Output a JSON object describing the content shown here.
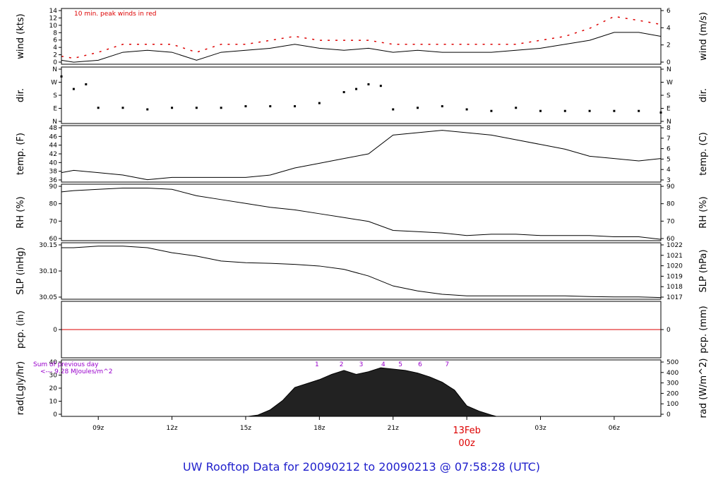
{
  "title": "UW Rooftop Data for 20090212  to  20090213 @ 07:58:28  (UTC)",
  "x_ticks": [
    "09z",
    "12z",
    "15z",
    "18z",
    "21z",
    "00z",
    "03z",
    "06z"
  ],
  "date_label": "13Feb",
  "date_label_hour": "00z",
  "colors": {
    "accent": "#dd0000",
    "title": "#1f1fcc",
    "annotation": "#9900cc",
    "line": "#000000"
  },
  "chart_data": [
    {
      "type": "line",
      "left_label": "wind (kts)",
      "right_label": "wind (m/s)",
      "ylim": [
        0,
        14
      ],
      "left_ticks": [
        "0",
        "2",
        "4",
        "6",
        "8",
        "10",
        "12",
        "14"
      ],
      "right_ticks": [
        "0",
        "2",
        "4",
        "6"
      ],
      "annotation": "10 min. peak winds in red",
      "series": [
        {
          "x": [
            7.5,
            8,
            9,
            10,
            11,
            12,
            13,
            14,
            15,
            16,
            17,
            18,
            19,
            20,
            21,
            22,
            23,
            24,
            25,
            26,
            27,
            28,
            29,
            30,
            31,
            31.9
          ],
          "values": [
            1,
            0.5,
            1,
            3,
            3.5,
            3,
            1,
            3,
            3.5,
            4,
            5,
            4,
            3.5,
            4,
            3,
            3.5,
            3,
            3,
            3,
            3.5,
            4,
            5,
            6,
            8,
            8,
            7
          ]
        },
        {
          "x": [
            7.5,
            8,
            9,
            10,
            11,
            12,
            13,
            14,
            15,
            16,
            17,
            18,
            19,
            20,
            21,
            22,
            23,
            24,
            25,
            26,
            27,
            28,
            29,
            30,
            31,
            31.9
          ],
          "values": [
            2,
            1.5,
            3,
            5,
            5,
            5,
            3,
            5,
            5,
            6,
            7,
            6,
            6,
            6,
            5,
            5,
            5,
            5,
            5,
            5,
            6,
            7,
            9,
            12,
            11,
            10
          ]
        }
      ]
    },
    {
      "type": "scatter",
      "left_label": "dir.",
      "right_label": "dir.",
      "ylim": [
        0,
        360
      ],
      "left_ticks": [
        "N",
        "E",
        "S",
        "W",
        "N"
      ],
      "right_ticks": [
        "N",
        "E",
        "S",
        "W",
        "N"
      ],
      "x": [
        7.5,
        8,
        8.5,
        9,
        10,
        11,
        12,
        13,
        14,
        15,
        16,
        17,
        18,
        19,
        19.5,
        20,
        20.5,
        21,
        22,
        23,
        24,
        25,
        26,
        27,
        28,
        29,
        30,
        31,
        31.9
      ],
      "values": [
        300,
        220,
        250,
        100,
        100,
        90,
        100,
        100,
        100,
        110,
        110,
        110,
        130,
        200,
        220,
        250,
        240,
        90,
        100,
        110,
        90,
        80,
        100,
        80,
        80,
        80,
        80,
        80,
        70
      ]
    },
    {
      "type": "line",
      "left_label": "temp. (F)",
      "right_label": "temp. (C)",
      "ylim": [
        36,
        48
      ],
      "left_ticks": [
        "36",
        "38",
        "40",
        "42",
        "44",
        "46",
        "48"
      ],
      "right_ticks": [
        "3",
        "4",
        "5",
        "6",
        "7",
        "8"
      ],
      "x": [
        7.5,
        8,
        9,
        10,
        11,
        12,
        13,
        14,
        15,
        16,
        17,
        18,
        19,
        20,
        21,
        22,
        23,
        24,
        25,
        26,
        27,
        28,
        29,
        30,
        31,
        31.9
      ],
      "values": [
        38,
        38.5,
        38,
        37.5,
        36.5,
        37,
        37,
        37,
        37,
        37.5,
        39,
        40,
        41,
        42,
        46,
        46.5,
        47,
        46.5,
        46,
        45,
        44,
        43,
        41.5,
        41,
        40.5,
        41
      ]
    },
    {
      "type": "line",
      "left_label": "RH (%)",
      "right_label": "RH (%)",
      "ylim": [
        52,
        96
      ],
      "left_ticks": [
        "60",
        "70",
        "80",
        "90"
      ],
      "right_ticks": [
        "60",
        "70",
        "80",
        "90"
      ],
      "x": [
        7.5,
        8,
        9,
        10,
        11,
        12,
        13,
        14,
        15,
        16,
        17,
        18,
        19,
        20,
        21,
        22,
        23,
        24,
        25,
        26,
        27,
        28,
        29,
        30,
        31,
        31.9
      ],
      "values": [
        90,
        91,
        92,
        93,
        93,
        92,
        87,
        84,
        81,
        78,
        76,
        73,
        70,
        67,
        60,
        59,
        58,
        56,
        57,
        57,
        56,
        56,
        56,
        55,
        55,
        53
      ]
    },
    {
      "type": "line",
      "left_label": "SLP (inHg)",
      "right_label": "SLP (hPa)",
      "ylim": [
        30.025,
        30.195
      ],
      "left_ticks": [
        "30.05",
        "30.10",
        "30.15"
      ],
      "right_ticks": [
        "1017",
        "1018",
        "1019",
        "1020",
        "1021",
        "1022"
      ],
      "x": [
        7.5,
        8,
        9,
        10,
        11,
        12,
        13,
        14,
        15,
        16,
        17,
        18,
        19,
        20,
        21,
        22,
        23,
        24,
        25,
        26,
        27,
        28,
        29,
        30,
        31,
        31.9
      ],
      "values": [
        30.18,
        30.18,
        30.185,
        30.185,
        30.18,
        30.165,
        30.155,
        30.14,
        30.135,
        30.133,
        30.13,
        30.125,
        30.115,
        30.095,
        30.065,
        30.05,
        30.04,
        30.035,
        30.035,
        30.035,
        30.035,
        30.035,
        30.033,
        30.032,
        30.032,
        30.03
      ]
    },
    {
      "type": "line",
      "left_label": "pcp. (in)",
      "right_label": "pcp. (mm)",
      "ylim": [
        -0.5,
        0.5
      ],
      "left_ticks": [
        "0"
      ],
      "right_ticks": [
        "0"
      ],
      "x": [
        7.5,
        31.9
      ],
      "values": [
        0,
        0
      ]
    },
    {
      "type": "area",
      "left_label": "rad(Lgly/hr)",
      "right_label": "rad (W/m^2)",
      "ylim": [
        0,
        43
      ],
      "left_ticks": [
        "0",
        "10",
        "20",
        "30",
        "40"
      ],
      "right_ticks": [
        "0",
        "100",
        "200",
        "300",
        "400",
        "500"
      ],
      "annotation_lines": [
        "Sum of previous day",
        "<--- 9.28 MJoules/m^2"
      ],
      "hour_marks": [
        "1",
        "2",
        "3",
        "4",
        "5",
        "6",
        "7"
      ],
      "hour_marks_x": [
        17.9,
        18.9,
        19.7,
        20.6,
        21.3,
        22.1,
        23.2
      ],
      "x": [
        15.1,
        15.5,
        16,
        16.5,
        17,
        17.5,
        18,
        18.5,
        19,
        19.5,
        20,
        20.5,
        21,
        21.5,
        22,
        22.5,
        23,
        23.5,
        24,
        24.5,
        25,
        25.2
      ],
      "values": [
        0,
        1,
        5,
        12,
        22,
        25,
        28,
        32,
        35,
        32,
        34,
        37,
        36,
        35,
        33,
        30,
        26,
        20,
        8,
        4,
        1,
        0
      ]
    }
  ]
}
